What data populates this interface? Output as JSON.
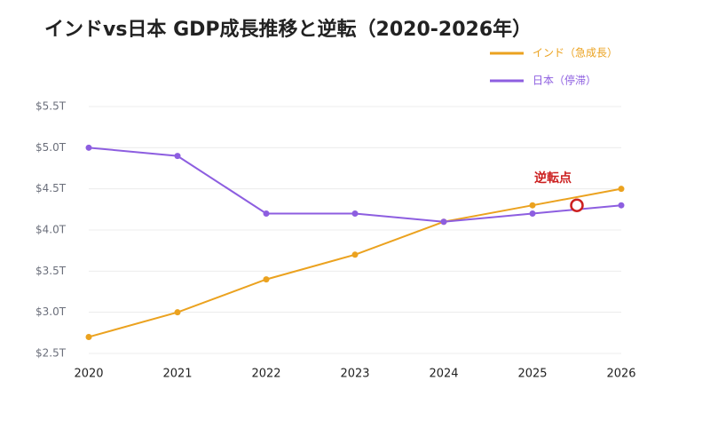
{
  "chart_data": {
    "type": "line",
    "title": "インドvs日本 GDP成長推移と逆転（2020-2026年）",
    "x": [
      2020,
      2021,
      2022,
      2023,
      2024,
      2025,
      2026
    ],
    "series": [
      {
        "name": "インド（急成長）",
        "color": "#eba21f",
        "values": [
          2.7,
          3.0,
          3.4,
          3.7,
          4.1,
          4.3,
          4.5
        ]
      },
      {
        "name": "日本（停滞）",
        "color": "#8d5ee0",
        "values": [
          5.0,
          4.9,
          4.2,
          4.2,
          4.1,
          4.2,
          4.3
        ]
      }
    ],
    "xlim": [
      2020,
      2026
    ],
    "ylim": [
      2.5,
      5.5
    ],
    "yticks": [
      {
        "value": 2.5,
        "label": "$2.5T"
      },
      {
        "value": 3.0,
        "label": "$3.0T"
      },
      {
        "value": 3.5,
        "label": "$3.5T"
      },
      {
        "value": 4.0,
        "label": "$4.0T"
      },
      {
        "value": 4.5,
        "label": "$4.5T"
      },
      {
        "value": 5.0,
        "label": "$5.0T"
      },
      {
        "value": 5.5,
        "label": "$5.5T"
      }
    ],
    "grid": true,
    "legend": "top-right",
    "annotation": {
      "text": "逆転点",
      "x": 2025.5,
      "y": 4.3,
      "color": "#cc2020"
    }
  }
}
